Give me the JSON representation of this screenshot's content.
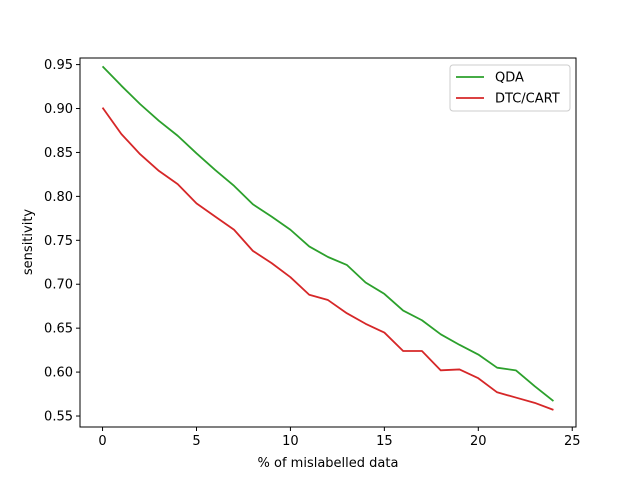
{
  "chart_data": {
    "type": "line",
    "xlabel": "% of mislabelled data",
    "ylabel": "sensitivity",
    "xlim": [
      -1.2,
      25.2
    ],
    "ylim": [
      0.5375,
      0.9575
    ],
    "xticks": [
      0,
      5,
      10,
      15,
      20,
      25
    ],
    "xtick_labels": [
      "0",
      "5",
      "10",
      "15",
      "20",
      "25"
    ],
    "yticks": [
      0.55,
      0.6,
      0.65,
      0.7,
      0.75,
      0.8,
      0.85,
      0.9,
      0.95
    ],
    "ytick_labels": [
      "0.55",
      "0.60",
      "0.65",
      "0.70",
      "0.75",
      "0.80",
      "0.85",
      "0.90",
      "0.95"
    ],
    "grid": false,
    "legend": "top-right",
    "x": [
      0,
      1,
      2,
      3,
      4,
      5,
      6,
      7,
      8,
      9,
      10,
      11,
      12,
      13,
      14,
      15,
      16,
      17,
      18,
      19,
      20,
      21,
      22,
      23,
      24
    ],
    "series": [
      {
        "name": "QDA",
        "color": "#2ca02c",
        "values": [
          0.948,
          0.926,
          0.905,
          0.886,
          0.869,
          0.849,
          0.83,
          0.812,
          0.791,
          0.777,
          0.762,
          0.743,
          0.731,
          0.722,
          0.702,
          0.689,
          0.67,
          0.659,
          0.643,
          0.631,
          0.62,
          0.605,
          0.602,
          0.584,
          0.567
        ]
      },
      {
        "name": "DTC/CART",
        "color": "#d62728",
        "values": [
          0.901,
          0.871,
          0.848,
          0.829,
          0.814,
          0.792,
          0.777,
          0.762,
          0.738,
          0.724,
          0.708,
          0.688,
          0.682,
          0.667,
          0.655,
          0.645,
          0.624,
          0.624,
          0.602,
          0.603,
          0.593,
          0.577,
          0.571,
          0.565,
          0.557
        ]
      }
    ]
  }
}
